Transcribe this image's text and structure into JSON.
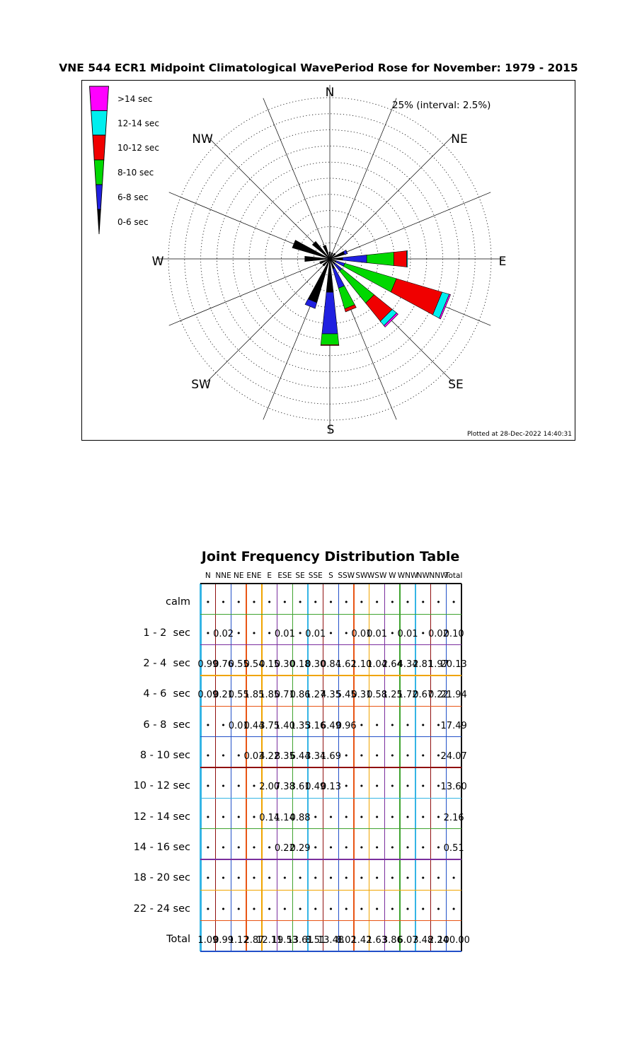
{
  "title": "VNE 544 ECR1 Midpoint Climatological WavePeriod Rose for November: 1979 - 2015",
  "rose": {
    "annotation": "25% (interval: 2.5%)",
    "plotted_at": "Plotted at 28-Dec-2022 14:40:31",
    "compass": [
      "N",
      "NE",
      "E",
      "SE",
      "S",
      "SW",
      "W",
      "NW"
    ],
    "legend": [
      {
        "label": ">14 sec",
        "color": "#ff00ff"
      },
      {
        "label": "12-14 sec",
        "color": "#00eeee"
      },
      {
        "label": "10-12 sec",
        "color": "#f00000"
      },
      {
        "label": "8-10 sec",
        "color": "#00d800"
      },
      {
        "label": "6-8 sec",
        "color": "#2020e0"
      },
      {
        "label": "0-6 sec",
        "color": "#000000"
      }
    ]
  },
  "chart_data": {
    "type": "wind-rose",
    "subtype": "stacked polar wedges, percent occurrence by wave period band",
    "units": "percent",
    "ring_interval_pct": 2.5,
    "ring_max_pct": 25,
    "directions": [
      "N",
      "NNE",
      "NE",
      "ENE",
      "E",
      "ESE",
      "SE",
      "SSE",
      "S",
      "SSW",
      "SW",
      "WSW",
      "W",
      "WNW",
      "NW",
      "NNW"
    ],
    "bands": [
      {
        "name": "0-6 sec",
        "color": "#000000",
        "values": [
          1.08,
          0.99,
          1.1,
          2.39,
          2.0,
          1.02,
          1.04,
          1.58,
          5.19,
          7.07,
          1.42,
          1.63,
          3.89,
          6.07,
          3.48,
          2.21
        ]
      },
      {
        "name": "6-8 sec",
        "color": "#2020e0",
        "values": [
          0,
          0,
          0.01,
          0.44,
          3.75,
          1.4,
          1.35,
          3.16,
          6.49,
          0.96,
          0,
          0,
          0,
          0,
          0,
          0
        ]
      },
      {
        "name": "8-10 sec",
        "color": "#00d800",
        "values": [
          0,
          0,
          0,
          0.03,
          4.22,
          8.35,
          6.44,
          3.34,
          1.69,
          0,
          0,
          0,
          0,
          0,
          0,
          0
        ]
      },
      {
        "name": "10-12 sec",
        "color": "#f00000",
        "values": [
          0,
          0,
          0,
          0,
          2.0,
          7.38,
          3.61,
          0.49,
          0.13,
          0,
          0,
          0,
          0,
          0,
          0,
          0
        ]
      },
      {
        "name": "12-14 sec",
        "color": "#00eeee",
        "values": [
          0,
          0,
          0,
          0,
          0.14,
          1.14,
          0.88,
          0,
          0,
          0,
          0,
          0,
          0,
          0,
          0,
          0
        ]
      },
      {
        "name": ">14 sec",
        "color": "#ff00ff",
        "values": [
          0,
          0,
          0,
          0,
          0,
          0.22,
          0.29,
          0,
          0,
          0,
          0,
          0,
          0,
          0,
          0,
          0
        ]
      }
    ]
  },
  "table": {
    "title": "Joint Frequency Distribution Table",
    "columns": [
      "N",
      "NNE",
      "NE",
      "ENE",
      "E",
      "ESE",
      "SE",
      "SSE",
      "S",
      "SSW",
      "SW",
      "WSW",
      "W",
      "WNW",
      "NW",
      "NNW",
      "Total"
    ],
    "rows": [
      {
        "label": "calm",
        "cells": [
          "•",
          "•",
          "•",
          "•",
          "•",
          "•",
          "•",
          "•",
          "•",
          "•",
          "•",
          "•",
          "•",
          "•",
          "•",
          "•",
          "•"
        ]
      },
      {
        "label": "1 - 2  sec",
        "cells": [
          "•",
          "0.02",
          "•",
          "•",
          "•",
          "0.01",
          "•",
          "0.01",
          "•",
          "•",
          "0.01",
          "0.01",
          "•",
          "0.01",
          "•",
          "0.02",
          "0.10"
        ]
      },
      {
        "label": "2 - 4  sec",
        "cells": [
          "0.99",
          "0.76",
          "0.55",
          "0.54",
          "0.15",
          "0.30",
          "0.18",
          "0.30",
          "0.84",
          "1.62",
          "1.10",
          "1.04",
          "2.64",
          "4.34",
          "2.81",
          "1.97",
          "20.13"
        ]
      },
      {
        "label": "4 - 6  sec",
        "cells": [
          "0.09",
          "0.21",
          "0.55",
          "1.85",
          "1.85",
          "0.71",
          "0.86",
          "1.27",
          "4.35",
          "5.45",
          "0.31",
          "0.58",
          "1.25",
          "1.72",
          "0.67",
          "0.22",
          "21.94"
        ]
      },
      {
        "label": "6 - 8  sec",
        "cells": [
          "•",
          "•",
          "0.01",
          "0.44",
          "3.75",
          "1.40",
          "1.35",
          "3.16",
          "6.49",
          "0.96",
          "•",
          "•",
          "•",
          "•",
          "•",
          "•",
          "17.49"
        ]
      },
      {
        "label": "8 - 10 sec",
        "cells": [
          "•",
          "•",
          "•",
          "0.03",
          "4.22",
          "8.35",
          "6.44",
          "3.34",
          "1.69",
          "•",
          "•",
          "•",
          "•",
          "•",
          "•",
          "•",
          "24.07"
        ]
      },
      {
        "label": "10 - 12 sec",
        "cells": [
          "•",
          "•",
          "•",
          "•",
          "2.00",
          "7.38",
          "3.61",
          "0.49",
          "0.13",
          "•",
          "•",
          "•",
          "•",
          "•",
          "•",
          "•",
          "13.60"
        ]
      },
      {
        "label": "12 - 14 sec",
        "cells": [
          "•",
          "•",
          "•",
          "•",
          "0.14",
          "1.14",
          "0.88",
          "•",
          "•",
          "•",
          "•",
          "•",
          "•",
          "•",
          "•",
          "•",
          "2.16"
        ]
      },
      {
        "label": "14 - 16 sec",
        "cells": [
          "•",
          "•",
          "•",
          "•",
          "•",
          "0.22",
          "0.29",
          "•",
          "•",
          "•",
          "•",
          "•",
          "•",
          "•",
          "•",
          "•",
          "0.51"
        ]
      },
      {
        "label": "18 - 20 sec",
        "cells": [
          "•",
          "•",
          "•",
          "•",
          "•",
          "•",
          "•",
          "•",
          "•",
          "•",
          "•",
          "•",
          "•",
          "•",
          "•",
          "•",
          "•"
        ]
      },
      {
        "label": "22 - 24 sec",
        "cells": [
          "•",
          "•",
          "•",
          "•",
          "•",
          "•",
          "•",
          "•",
          "•",
          "•",
          "•",
          "•",
          "•",
          "•",
          "•",
          "•",
          "•"
        ]
      },
      {
        "label": "Total",
        "cells": [
          "1.09",
          "0.99",
          "1.12",
          "2.87",
          "12.11",
          "19.53",
          "13.61",
          "8.51",
          "13.48",
          "8.02",
          "1.42",
          "1.63",
          "3.86",
          "6.07",
          "3.48",
          "2.24",
          "100.00"
        ]
      }
    ]
  }
}
